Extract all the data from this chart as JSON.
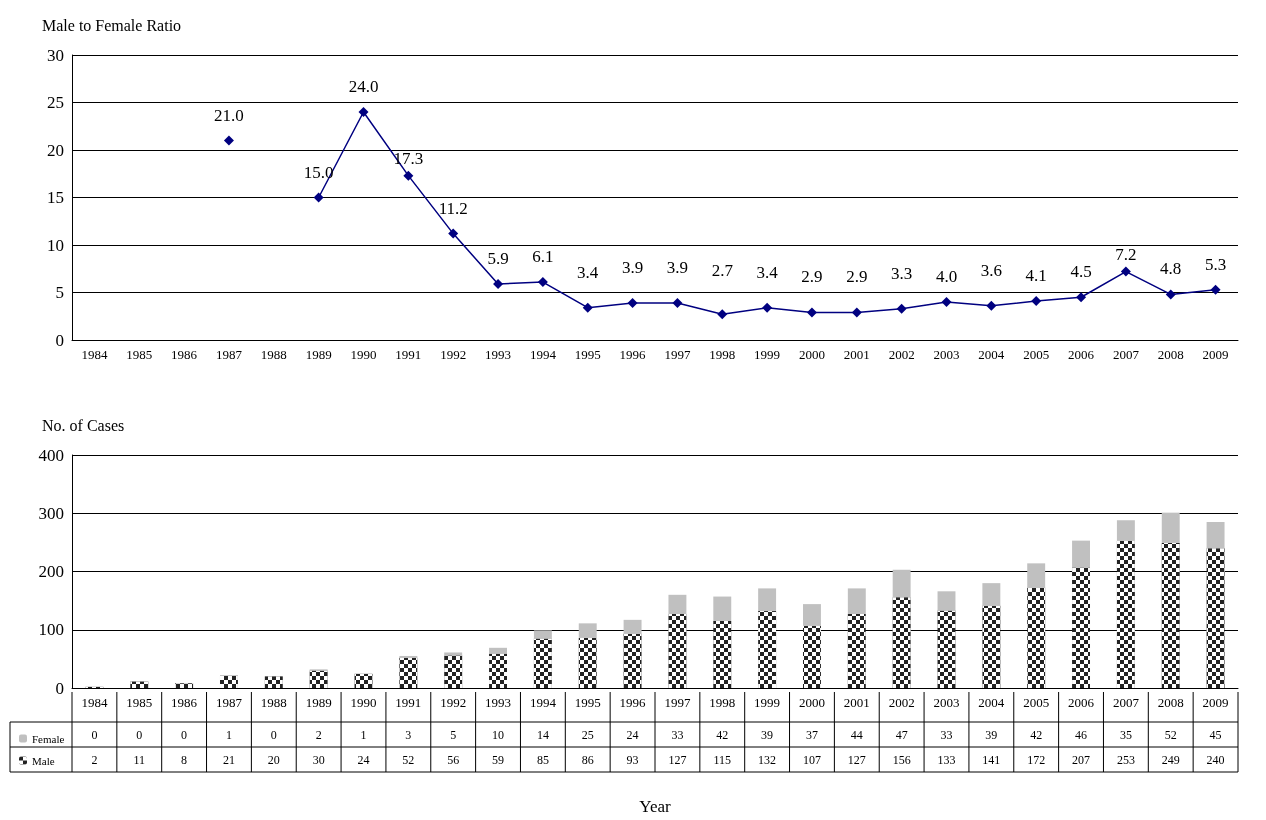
{
  "chart_data": [
    {
      "type": "line",
      "ylabel": "Male to Female Ratio",
      "categories": [
        "1984",
        "1985",
        "1986",
        "1987",
        "1988",
        "1989",
        "1990",
        "1991",
        "1992",
        "1993",
        "1994",
        "1995",
        "1996",
        "1997",
        "1998",
        "1999",
        "2000",
        "2001",
        "2002",
        "2003",
        "2004",
        "2005",
        "2006",
        "2007",
        "2008",
        "2009"
      ],
      "values": [
        null,
        null,
        null,
        21.0,
        null,
        15.0,
        24.0,
        17.3,
        11.2,
        5.9,
        6.1,
        3.4,
        3.9,
        3.9,
        2.7,
        3.4,
        2.9,
        2.9,
        3.3,
        4.0,
        3.6,
        4.1,
        4.5,
        7.2,
        4.8,
        5.3
      ],
      "value_labels": [
        null,
        null,
        null,
        "21.0",
        null,
        "15.0",
        "24.0",
        "17.3",
        "11.2",
        "5.9",
        "6.1",
        "3.4",
        "3.9",
        "3.9",
        "2.7",
        "3.4",
        "2.9",
        "2.9",
        "3.3",
        "4.0",
        "3.6",
        "4.1",
        "4.5",
        "7.2",
        "4.8",
        "5.3"
      ],
      "color": "#000080",
      "marker": "diamond",
      "ylim": [
        0,
        30
      ],
      "yticks": [
        0,
        5,
        10,
        15,
        20,
        25,
        30
      ],
      "grid": "y",
      "legend": false
    },
    {
      "type": "bar",
      "stacked": true,
      "ylabel": "No. of Cases",
      "xlabel": "Year",
      "categories": [
        "1984",
        "1985",
        "1986",
        "1987",
        "1988",
        "1989",
        "1990",
        "1991",
        "1992",
        "1993",
        "1994",
        "1995",
        "1996",
        "1997",
        "1998",
        "1999",
        "2000",
        "2001",
        "2002",
        "2003",
        "2004",
        "2005",
        "2006",
        "2007",
        "2008",
        "2009"
      ],
      "series": [
        {
          "name": "Male",
          "color": "#222222",
          "values": [
            2,
            11,
            8,
            21,
            20,
            30,
            24,
            52,
            56,
            59,
            85,
            86,
            93,
            127,
            115,
            132,
            107,
            127,
            156,
            133,
            141,
            172,
            207,
            253,
            249,
            240
          ]
        },
        {
          "name": "Female",
          "color": "#c0c0c0",
          "values": [
            0,
            0,
            0,
            1,
            0,
            2,
            1,
            3,
            5,
            10,
            14,
            25,
            24,
            33,
            42,
            39,
            37,
            44,
            47,
            33,
            39,
            42,
            46,
            35,
            52,
            45
          ]
        }
      ],
      "ylim": [
        0,
        400
      ],
      "yticks": [
        0,
        100,
        200,
        300,
        400
      ],
      "grid": "y",
      "legend": "bottom left",
      "data_labels": true
    }
  ]
}
